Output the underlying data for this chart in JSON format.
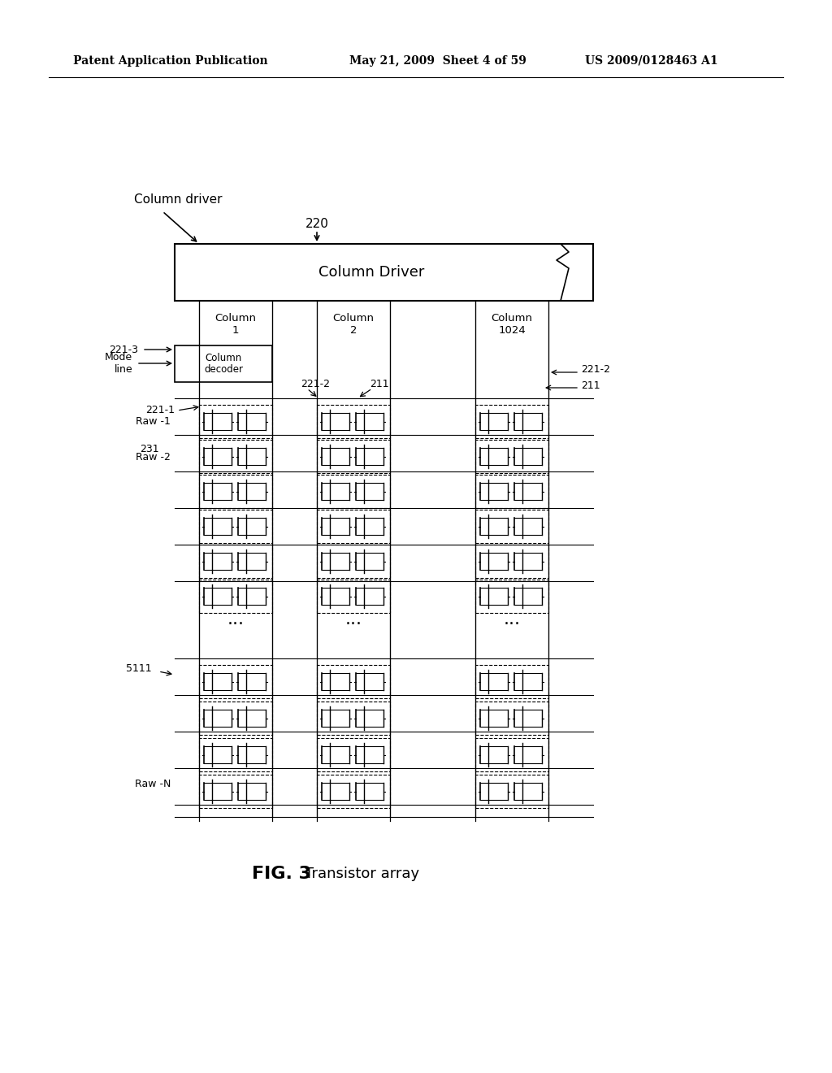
{
  "bg_color": "#ffffff",
  "header_left": "Patent Application Publication",
  "header_mid": "May 21, 2009  Sheet 4 of 59",
  "header_right": "US 2009/0128463 A1",
  "fig_label": "FIG. 3",
  "fig_desc": "Transistor array",
  "title_col_driver": "Column driver",
  "label_220": "220",
  "col_driver_text": "Column Driver",
  "col1_label": "Column\n1",
  "col2_label": "Column\n2",
  "col3_label": "Column\n1024",
  "label_221_3": "221-3",
  "label_mode": "Mode\nline",
  "label_221_2a": "221-2",
  "label_211a": "211",
  "label_221_1": "221-1",
  "label_raw1": "Raw -1",
  "label_231": "231",
  "label_raw2": "Raw -2",
  "label_5111": "5111",
  "label_221_2b": "221-2",
  "label_211b": "211",
  "label_raw_n": "Raw -N",
  "label_col_decoder": "Column\ndecoder"
}
